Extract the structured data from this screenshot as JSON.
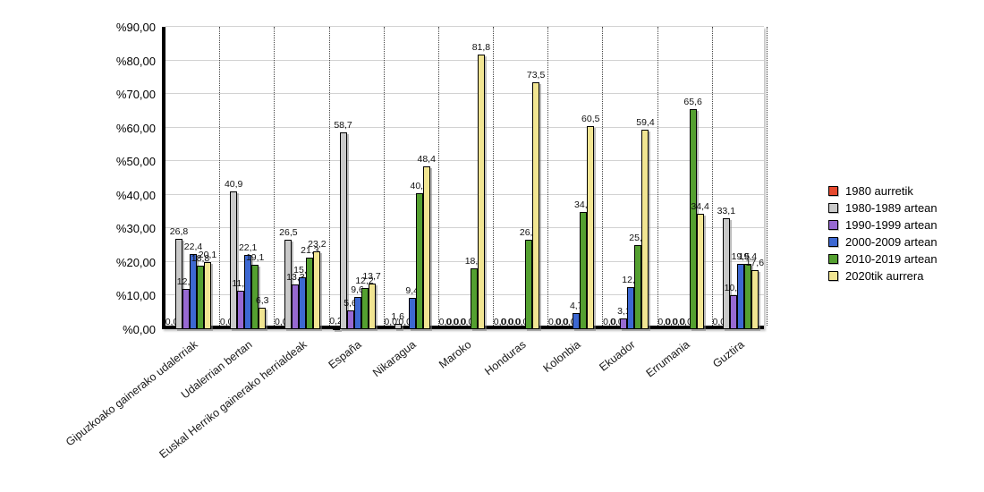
{
  "chart_data": {
    "type": "bar",
    "title": "",
    "xlabel": "",
    "ylabel": "",
    "ylim": [
      0,
      90
    ],
    "grid": true,
    "legend_position": "right",
    "y_tick_labels": [
      "%0,00",
      "%10,00",
      "%20,00",
      "%30,00",
      "%40,00",
      "%50,00",
      "%60,00",
      "%70,00",
      "%80,00",
      "%90,00"
    ],
    "value_label_decimal_separator": ",",
    "categories": [
      "Gipuzkoako gainerako udalerriak",
      "Udalerrian bertan",
      "Euskal Herriko gainerako herrialdeak",
      "España",
      "Nikaragua",
      "Maroko",
      "Honduras",
      "Kolonbia",
      "Ekuador",
      "Errumania",
      "Guztira"
    ],
    "series": [
      {
        "name": "1980 aurretik",
        "color": "#e6492e",
        "values": [
          0.0,
          0.0,
          0.0,
          0.2,
          0.0,
          0.0,
          0.0,
          0.0,
          0.0,
          0.0,
          0.0
        ]
      },
      {
        "name": "1980-1989 artean",
        "color": "#c9c9c9",
        "values": [
          26.8,
          40.9,
          26.5,
          58.7,
          1.6,
          0.0,
          0.0,
          0.0,
          0.0,
          0.0,
          33.1
        ]
      },
      {
        "name": "1990-1999 artean",
        "color": "#9769d2",
        "values": [
          12.0,
          11.5,
          13.3,
          5.6,
          0.0,
          0.0,
          0.0,
          0.0,
          3.1,
          0.0,
          10.2
        ]
      },
      {
        "name": "2000-2009 artean",
        "color": "#3d68d2",
        "values": [
          22.4,
          22.1,
          15.5,
          9.6,
          9.4,
          0.0,
          0.0,
          4.7,
          12.5,
          0.0,
          19.5
        ]
      },
      {
        "name": "2010-2019 artean",
        "color": "#54a030",
        "values": [
          18.8,
          19.1,
          21.3,
          12.2,
          40.6,
          18.2,
          26.5,
          34.9,
          25.0,
          65.6,
          19.4
        ]
      },
      {
        "name": "2020tik aurrera",
        "color": "#f1e592",
        "values": [
          20.1,
          6.3,
          23.2,
          13.7,
          48.4,
          81.8,
          73.5,
          60.5,
          59.4,
          34.4,
          17.6
        ]
      }
    ]
  }
}
